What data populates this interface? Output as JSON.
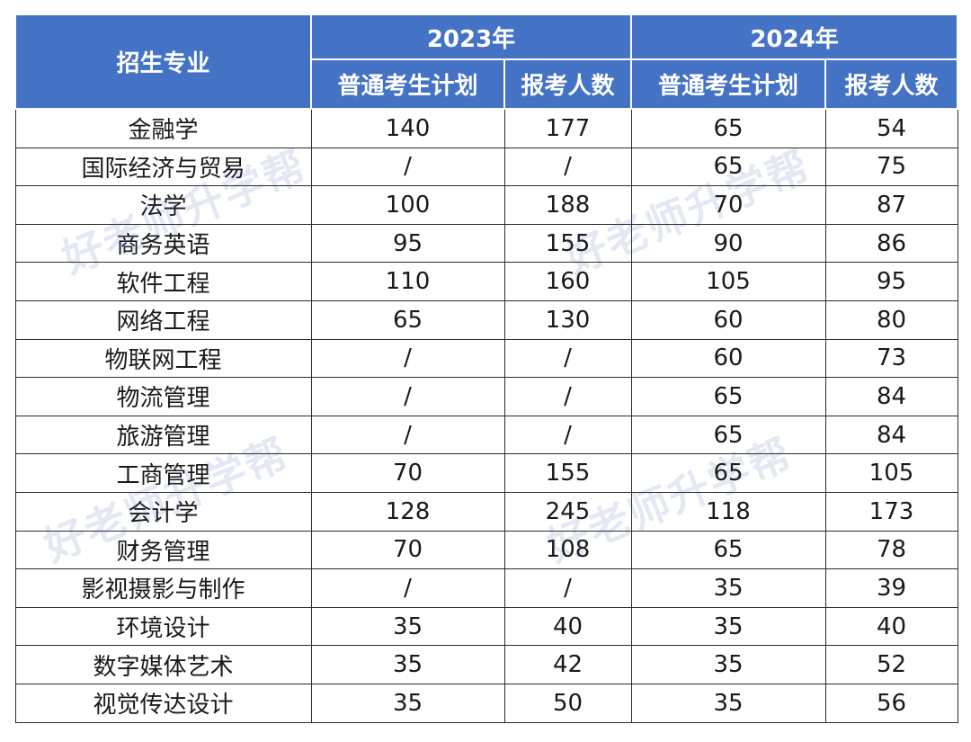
{
  "table": {
    "header_major": "招生专业",
    "years": [
      "2023年",
      "2024年"
    ],
    "sub_headers": [
      "普通考生计划",
      "报考人数",
      "普通考生计划",
      "报考人数"
    ],
    "rows": [
      [
        "金融学",
        "140",
        "177",
        "65",
        "54"
      ],
      [
        "国际经济与贸易",
        "/",
        "/",
        "65",
        "75"
      ],
      [
        "法学",
        "100",
        "188",
        "70",
        "87"
      ],
      [
        "商务英语",
        "95",
        "155",
        "90",
        "86"
      ],
      [
        "软件工程",
        "110",
        "160",
        "105",
        "95"
      ],
      [
        "网络工程",
        "65",
        "130",
        "60",
        "80"
      ],
      [
        "物联网工程",
        "/",
        "/",
        "60",
        "73"
      ],
      [
        "物流管理",
        "/",
        "/",
        "65",
        "84"
      ],
      [
        "旅游管理",
        "/",
        "/",
        "65",
        "84"
      ],
      [
        "工商管理",
        "70",
        "155",
        "65",
        "105"
      ],
      [
        "会计学",
        "128",
        "245",
        "118",
        "173"
      ],
      [
        "财务管理",
        "70",
        "108",
        "65",
        "78"
      ],
      [
        "影视摄影与制作",
        "/",
        "/",
        "35",
        "39"
      ],
      [
        "环境设计",
        "35",
        "40",
        "35",
        "40"
      ],
      [
        "数字媒体艺术",
        "35",
        "42",
        "35",
        "52"
      ],
      [
        "视觉传达设计",
        "35",
        "50",
        "35",
        "56"
      ]
    ]
  },
  "watermark": "好老师升学帮",
  "colors": {
    "header_bg": "#4472c4",
    "header_text": "#ffffff",
    "border": "#2b2b2b"
  }
}
